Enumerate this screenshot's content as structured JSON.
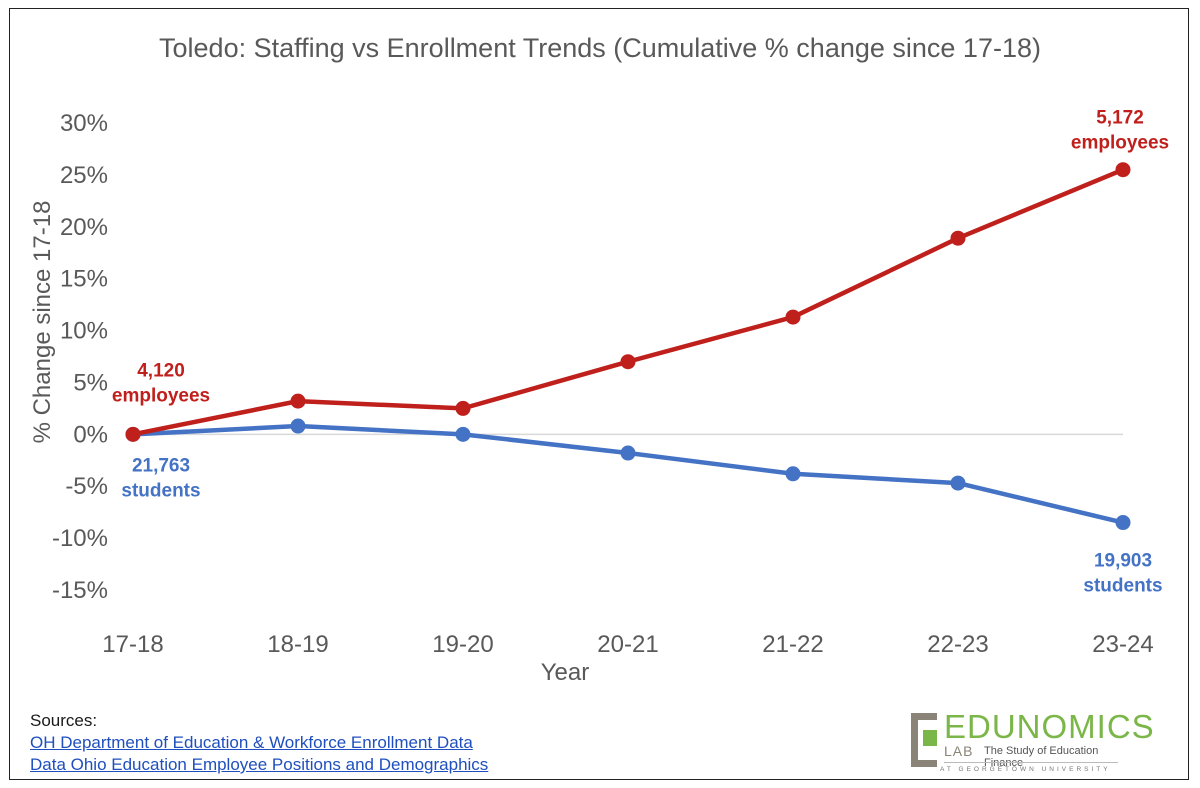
{
  "chart_data": {
    "type": "line",
    "title": "Toledo: Staffing vs Enrollment Trends (Cumulative % change since 17-18)",
    "xlabel": "Year",
    "ylabel": "% Change since 17-18",
    "categories": [
      "17-18",
      "18-19",
      "19-20",
      "20-21",
      "21-22",
      "22-23",
      "23-24"
    ],
    "ylim": [
      -15,
      30
    ],
    "yticks": [
      -15,
      -10,
      -5,
      0,
      5,
      10,
      15,
      20,
      25,
      30
    ],
    "ytick_labels": [
      "-15%",
      "-10%",
      "-5%",
      "0%",
      "5%",
      "10%",
      "15%",
      "20%",
      "25%",
      "30%"
    ],
    "grid": false,
    "legend": "none",
    "series": [
      {
        "values": [
          0,
          3.2,
          2.5,
          7.0,
          11.3,
          18.9,
          25.5
        ],
        "color": "#c0201c"
      },
      {
        "values": [
          0,
          0.8,
          0,
          -1.8,
          -3.8,
          -4.7,
          -8.5
        ],
        "color": "#4472c4"
      }
    ],
    "annotations": [
      {
        "series": 0,
        "point": 0,
        "lines": [
          "4,120",
          "employees"
        ],
        "color": "#c0201c"
      },
      {
        "series": 0,
        "point": 6,
        "lines": [
          "5,172",
          "employees"
        ],
        "color": "#c0201c"
      },
      {
        "series": 1,
        "point": 0,
        "lines": [
          "21,763",
          "students"
        ],
        "color": "#4472c4"
      },
      {
        "series": 1,
        "point": 6,
        "lines": [
          "19,903",
          "students"
        ],
        "color": "#4472c4"
      }
    ]
  },
  "sources": {
    "heading": "Sources:",
    "links": [
      "OH Department of Education & Workforce Enrollment Data",
      "Data Ohio Education Employee Positions and Demographics"
    ]
  },
  "logo": {
    "name": "EDUNOMICS",
    "lab": "LAB",
    "tagline": "The Study of Education Finance",
    "university": "AT GEORGETOWN UNIVERSITY"
  }
}
